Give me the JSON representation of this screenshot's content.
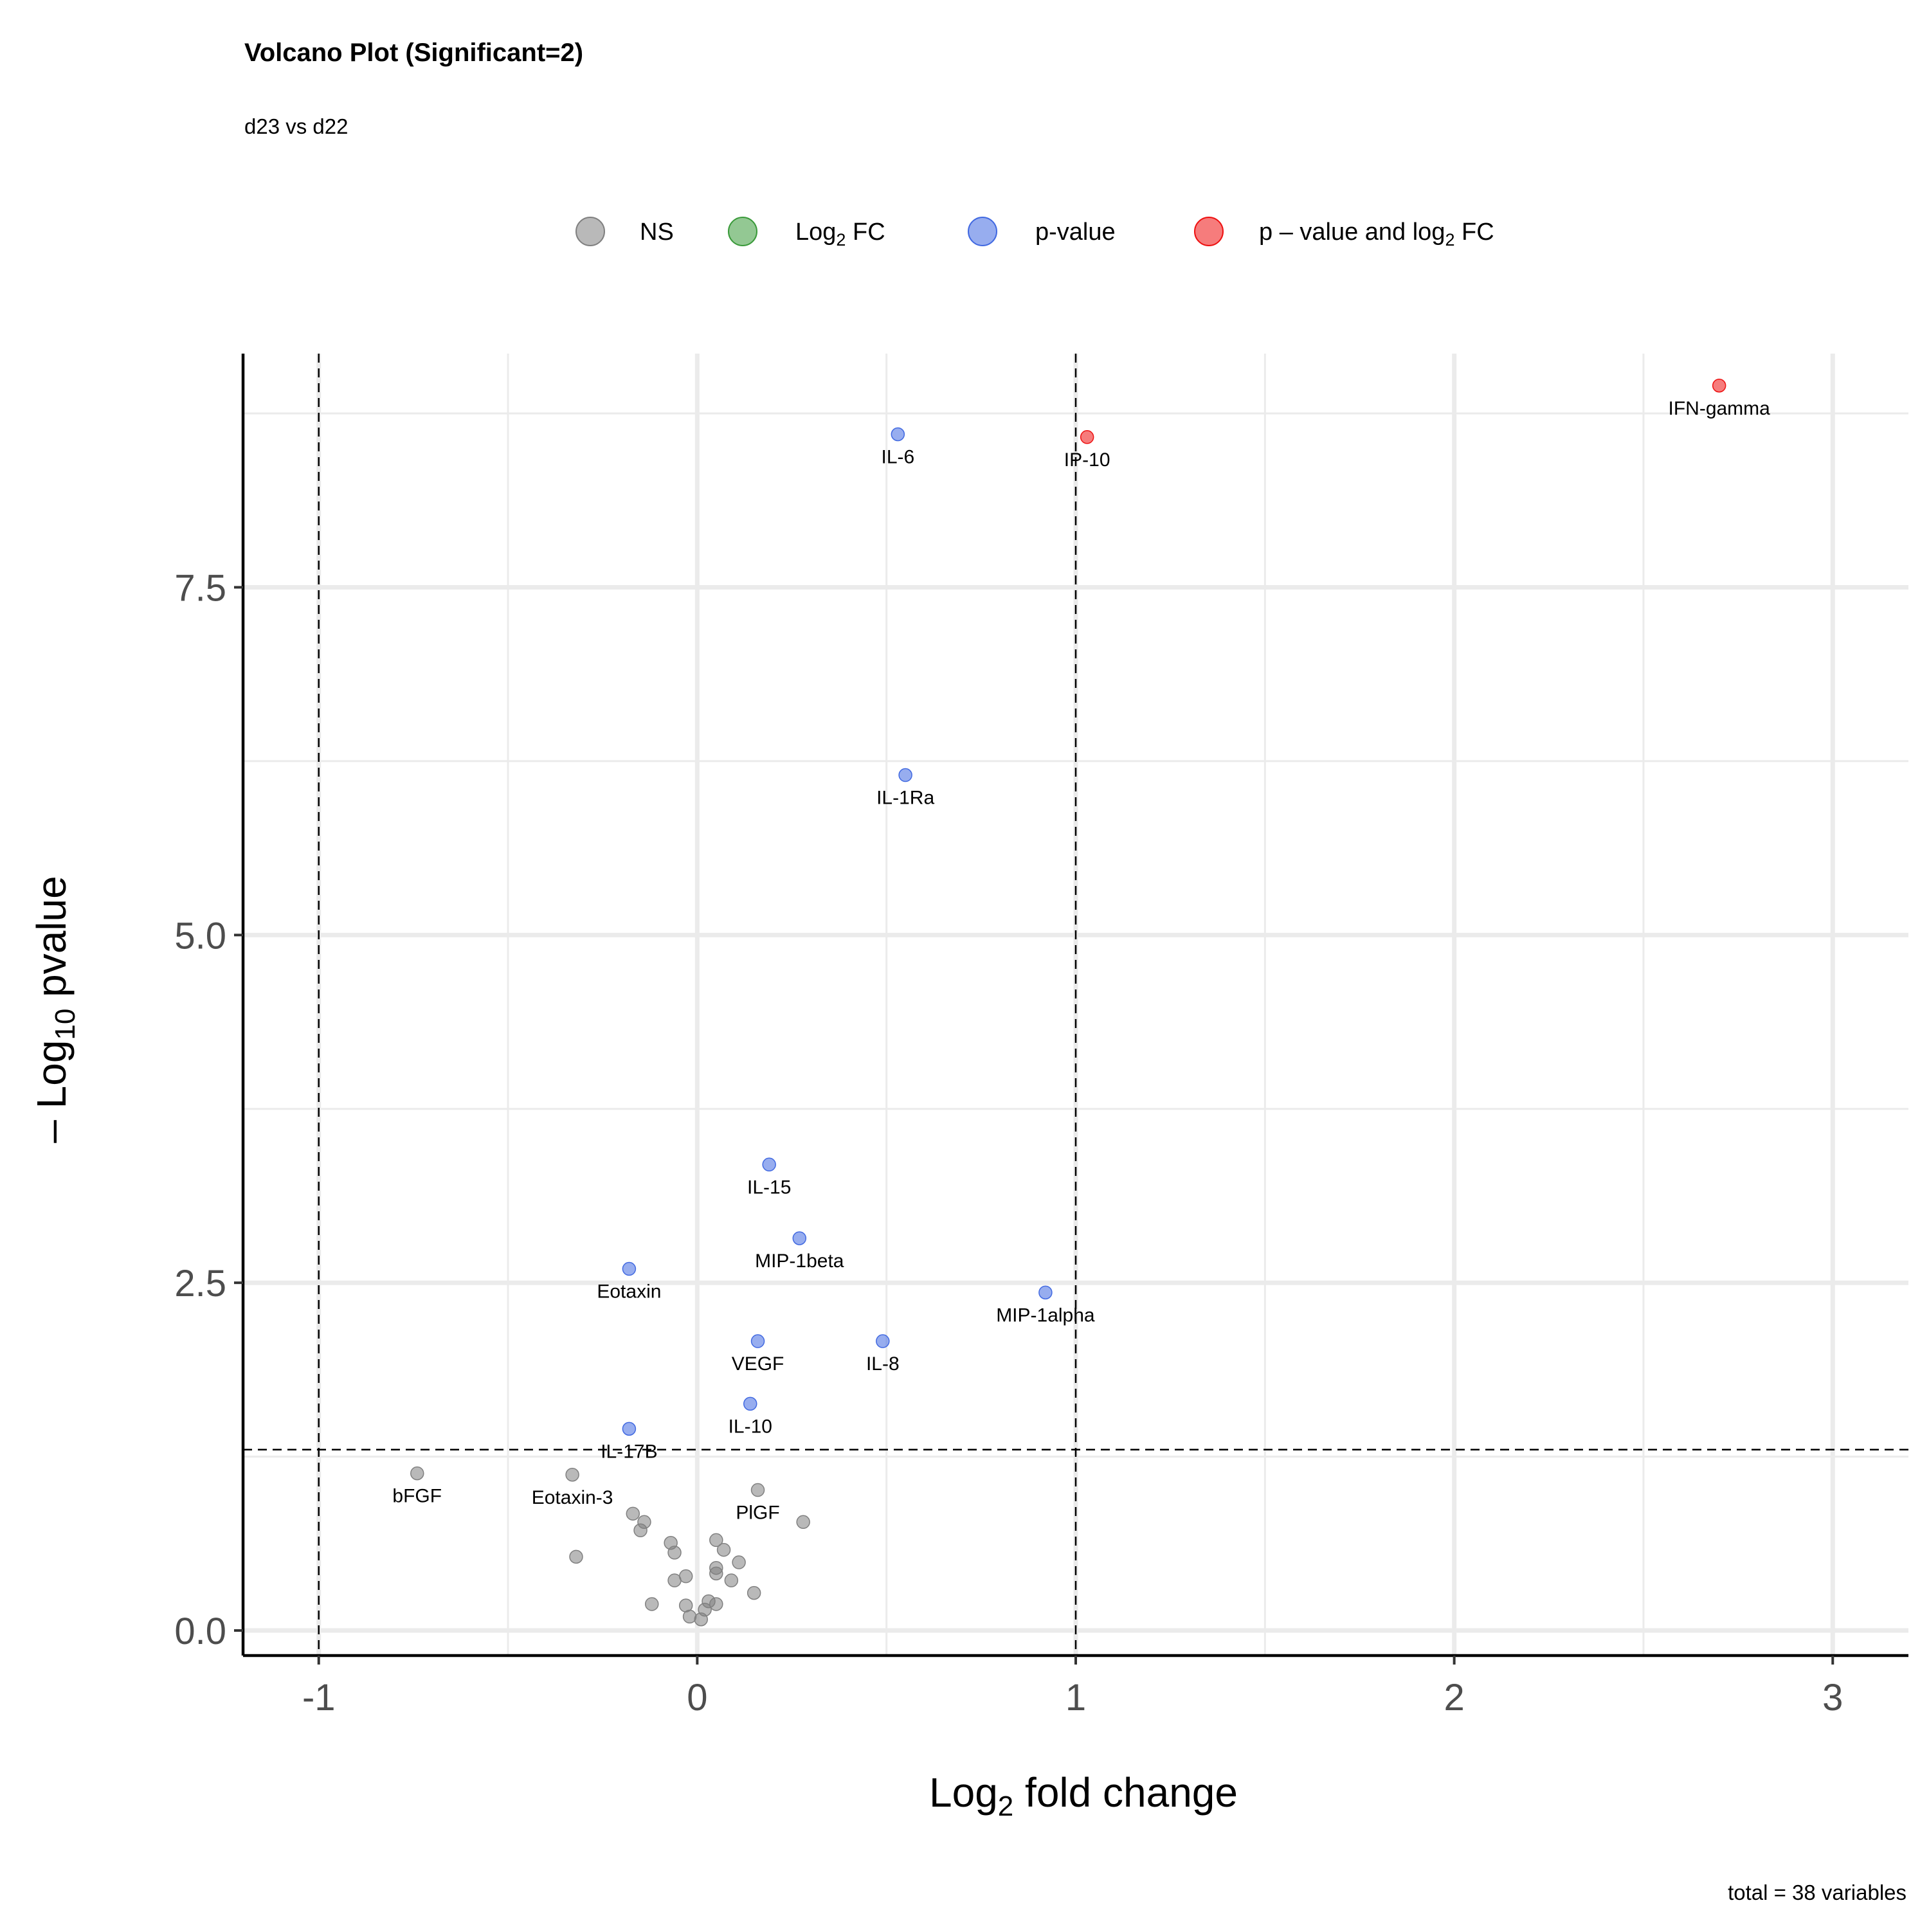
{
  "chart_data": {
    "type": "scatter",
    "title": "Volcano Plot (Significant=2)",
    "subtitle": "d23 vs d22",
    "xlabel": {
      "pre": "Log",
      "sub": "2",
      "post": " fold change"
    },
    "ylabel": {
      "pre": "– Log",
      "sub": "10",
      "post": " pvalue"
    },
    "caption": "total = 38 variables",
    "xlim": [
      -1.2,
      3.2
    ],
    "ylim": [
      -0.18,
      9.18
    ],
    "x_ticks": [
      -1,
      0,
      1,
      2,
      3
    ],
    "x_tick_labels": [
      "-1",
      "0",
      "1",
      "2",
      "3"
    ],
    "y_ticks": [
      0,
      2.5,
      5,
      7.5
    ],
    "y_tick_labels": [
      "0.0",
      "2.5",
      "5.0",
      "7.5"
    ],
    "x_minor_ticks": [
      -0.5,
      0.5,
      1.5,
      2.5
    ],
    "y_minor_ticks": [
      1.25,
      3.75,
      6.25,
      8.75
    ],
    "grid": true,
    "legend_position": "top",
    "fc_cutoffs": [
      -1,
      1
    ],
    "p_cutoff_y": 1.3,
    "categories": [
      {
        "key": "NS",
        "color": "#808080"
      },
      {
        "key": "FC",
        "color": "#3a9a3a"
      },
      {
        "key": "P",
        "color": "#4169e1"
      },
      {
        "key": "P_FC",
        "color": "#ee1111"
      }
    ],
    "legend": [
      {
        "key": "NS",
        "pre": "NS",
        "sub": "",
        "post": ""
      },
      {
        "key": "FC",
        "pre": "Log",
        "sub": "2",
        "post": " FC"
      },
      {
        "key": "P",
        "pre": "p-value",
        "sub": "",
        "post": ""
      },
      {
        "key": "P_FC",
        "pre": "p – value and log",
        "sub": "2",
        "post": " FC"
      }
    ],
    "points": [
      {
        "x": 2.7,
        "y": 8.95,
        "cat": "P_FC",
        "label": "IFN-gamma"
      },
      {
        "x": 1.03,
        "y": 8.58,
        "cat": "P_FC",
        "label": "IP-10"
      },
      {
        "x": 0.53,
        "y": 8.6,
        "cat": "P",
        "label": "IL-6"
      },
      {
        "x": 0.55,
        "y": 6.15,
        "cat": "P",
        "label": "IL-1Ra"
      },
      {
        "x": 0.19,
        "y": 3.35,
        "cat": "P",
        "label": "IL-15"
      },
      {
        "x": 0.27,
        "y": 2.82,
        "cat": "P",
        "label": "MIP-1beta"
      },
      {
        "x": -0.18,
        "y": 2.6,
        "cat": "P",
        "label": "Eotaxin"
      },
      {
        "x": 0.92,
        "y": 2.43,
        "cat": "P",
        "label": "MIP-1alpha"
      },
      {
        "x": 0.16,
        "y": 2.08,
        "cat": "P",
        "label": "VEGF"
      },
      {
        "x": 0.49,
        "y": 2.08,
        "cat": "P",
        "label": "IL-8"
      },
      {
        "x": 0.14,
        "y": 1.63,
        "cat": "P",
        "label": "IL-10"
      },
      {
        "x": -0.18,
        "y": 1.45,
        "cat": "P",
        "label": "IL-17B"
      },
      {
        "x": -0.74,
        "y": 1.13,
        "cat": "NS",
        "label": "bFGF"
      },
      {
        "x": -0.33,
        "y": 1.12,
        "cat": "NS",
        "label": "Eotaxin-3"
      },
      {
        "x": 0.16,
        "y": 1.01,
        "cat": "NS",
        "label": "PlGF"
      },
      {
        "x": 0.28,
        "y": 0.78,
        "cat": "NS",
        "label": ""
      },
      {
        "x": -0.17,
        "y": 0.84,
        "cat": "NS",
        "label": ""
      },
      {
        "x": -0.14,
        "y": 0.78,
        "cat": "NS",
        "label": ""
      },
      {
        "x": -0.15,
        "y": 0.72,
        "cat": "NS",
        "label": ""
      },
      {
        "x": -0.07,
        "y": 0.63,
        "cat": "NS",
        "label": ""
      },
      {
        "x": -0.06,
        "y": 0.56,
        "cat": "NS",
        "label": ""
      },
      {
        "x": 0.05,
        "y": 0.65,
        "cat": "NS",
        "label": ""
      },
      {
        "x": 0.07,
        "y": 0.58,
        "cat": "NS",
        "label": ""
      },
      {
        "x": -0.32,
        "y": 0.53,
        "cat": "NS",
        "label": ""
      },
      {
        "x": 0.11,
        "y": 0.49,
        "cat": "NS",
        "label": ""
      },
      {
        "x": 0.05,
        "y": 0.45,
        "cat": "NS",
        "label": ""
      },
      {
        "x": 0.05,
        "y": 0.41,
        "cat": "NS",
        "label": ""
      },
      {
        "x": -0.03,
        "y": 0.39,
        "cat": "NS",
        "label": ""
      },
      {
        "x": -0.06,
        "y": 0.36,
        "cat": "NS",
        "label": ""
      },
      {
        "x": 0.09,
        "y": 0.36,
        "cat": "NS",
        "label": ""
      },
      {
        "x": 0.15,
        "y": 0.27,
        "cat": "NS",
        "label": ""
      },
      {
        "x": -0.12,
        "y": 0.19,
        "cat": "NS",
        "label": ""
      },
      {
        "x": -0.03,
        "y": 0.18,
        "cat": "NS",
        "label": ""
      },
      {
        "x": 0.03,
        "y": 0.21,
        "cat": "NS",
        "label": ""
      },
      {
        "x": 0.05,
        "y": 0.19,
        "cat": "NS",
        "label": ""
      },
      {
        "x": 0.02,
        "y": 0.15,
        "cat": "NS",
        "label": ""
      },
      {
        "x": -0.02,
        "y": 0.1,
        "cat": "NS",
        "label": ""
      },
      {
        "x": 0.01,
        "y": 0.08,
        "cat": "NS",
        "label": ""
      }
    ]
  }
}
